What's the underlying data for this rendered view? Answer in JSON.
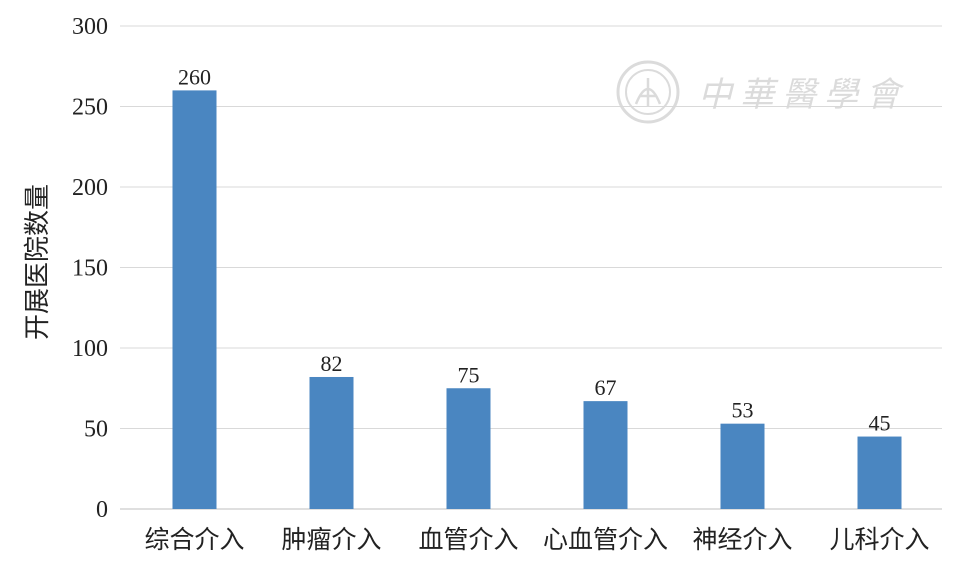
{
  "chart_data": {
    "type": "bar",
    "title": "",
    "xlabel": "",
    "ylabel": "开展医院数量",
    "categories": [
      "综合介入",
      "肿瘤介入",
      "血管介入",
      "心血管介入",
      "神经介入",
      "儿科介入"
    ],
    "values": [
      260,
      82,
      75,
      67,
      53,
      45
    ],
    "ylim": [
      0,
      300
    ],
    "yticks": [
      0,
      50,
      100,
      150,
      200,
      250,
      300
    ],
    "grid": true,
    "legend": "none",
    "bar_color": "#4a86c1",
    "data_labels": true
  },
  "watermark": {
    "text": "中華醫學會",
    "icon": "seal-emblem-icon",
    "color": "#d8d8d8"
  }
}
